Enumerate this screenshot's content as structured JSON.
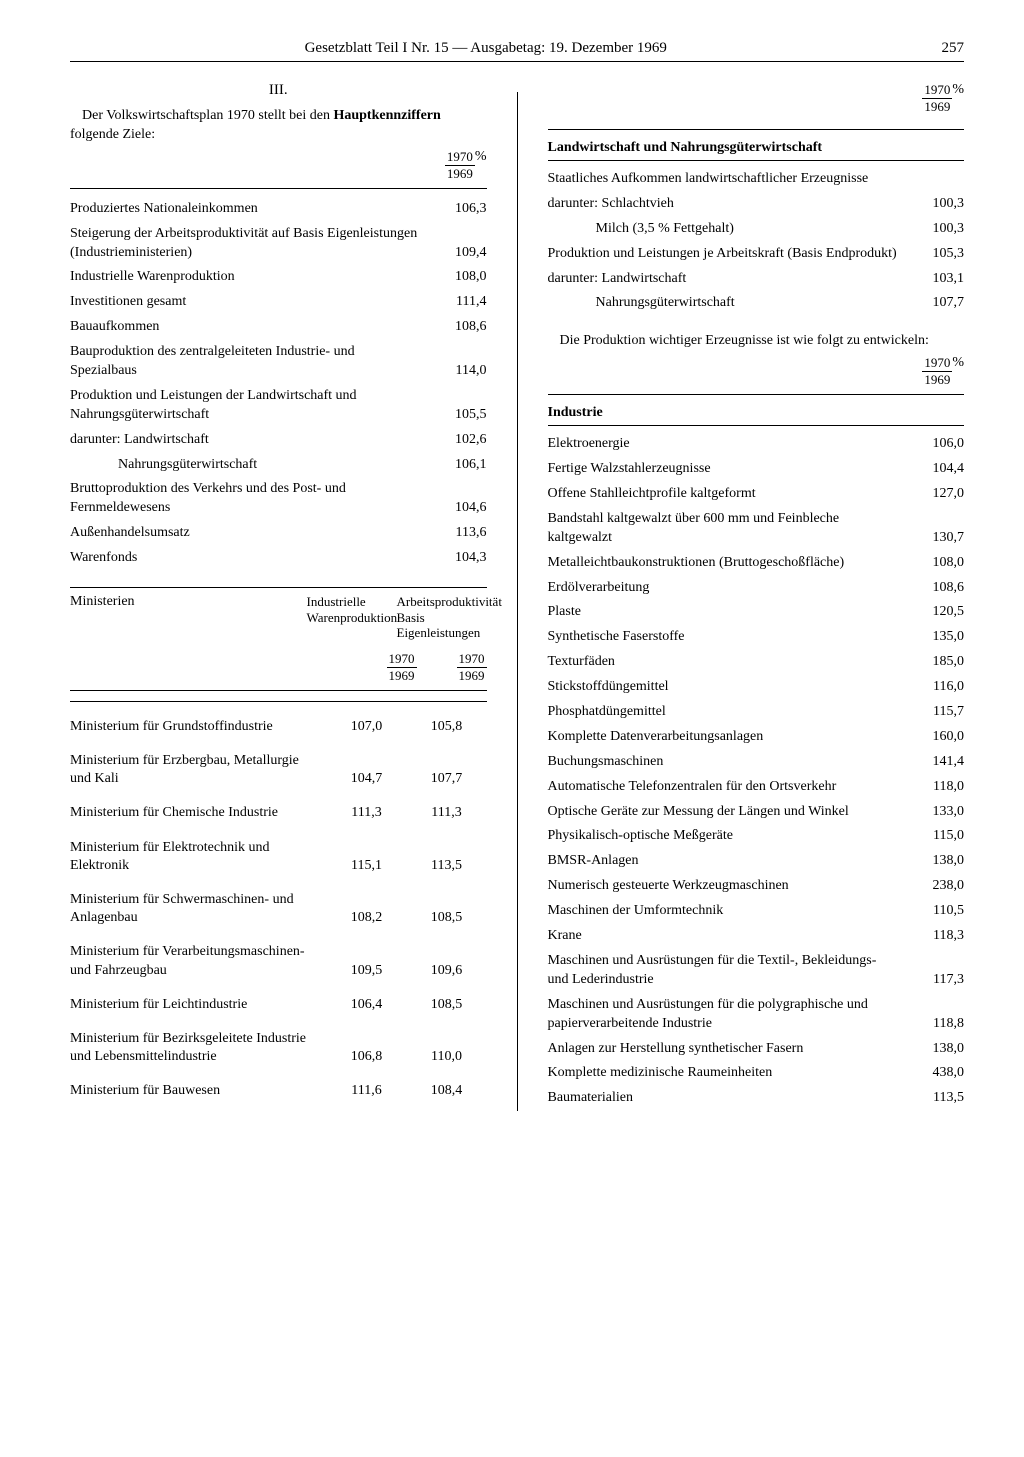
{
  "header": {
    "title": "Gesetzblatt Teil I Nr. 15 — Ausgabetag: 19. Dezember 1969",
    "page": "257"
  },
  "left": {
    "section_num": "III.",
    "intro_pre": "Der Volkswirtschaftsplan 1970 stellt bei den ",
    "intro_bold": "Hauptkennziffern",
    "intro_post": " folgende Ziele:",
    "ratio_top": "1970",
    "ratio_bot": "1969",
    "ratio_pct": "%",
    "rows1": [
      {
        "label": "Produziertes Nationaleinkommen",
        "val": "106,3"
      },
      {
        "label": "Steigerung der Arbeitsproduktivität auf Basis Eigenleistungen (Industrieministerien)",
        "val": "109,4"
      },
      {
        "label": "Industrielle Warenproduktion",
        "val": "108,0"
      },
      {
        "label": "Investitionen gesamt",
        "val": "111,4"
      },
      {
        "label": "Bauaufkommen",
        "val": "108,6"
      },
      {
        "label": "Bauproduktion des zentralgeleiteten Industrie- und Spezialbaus",
        "val": "114,0"
      },
      {
        "label": "Produktion und Leistungen der Landwirtschaft und Nahrungsgüterwirtschaft",
        "val": "105,5"
      },
      {
        "label": "darunter: Landwirtschaft",
        "val": "102,6"
      },
      {
        "label": "Nahrungsgüterwirtschaft",
        "val": "106,1",
        "indent": true
      },
      {
        "label": "Bruttoproduktion des Verkehrs und des Post- und Fernmeldewesens",
        "val": "104,6"
      },
      {
        "label": "Außenhandelsumsatz",
        "val": "113,6"
      },
      {
        "label": "Warenfonds",
        "val": "104,3"
      }
    ],
    "ministries_header": {
      "col0": "Ministerien",
      "col1": "Industrielle Warenproduktion",
      "col2": "Arbeitsproduktivität Basis Eigenleistungen"
    },
    "ministries": [
      {
        "label": "Ministerium für Grundstoffindustrie",
        "v1": "107,0",
        "v2": "105,8"
      },
      {
        "label": "Ministerium für Erzbergbau, Metallurgie und Kali",
        "v1": "104,7",
        "v2": "107,7"
      },
      {
        "label": "Ministerium für Chemische Industrie",
        "v1": "111,3",
        "v2": "111,3"
      },
      {
        "label": "Ministerium für Elektrotechnik und Elektronik",
        "v1": "115,1",
        "v2": "113,5"
      },
      {
        "label": "Ministerium für Schwermaschinen- und Anlagenbau",
        "v1": "108,2",
        "v2": "108,5"
      },
      {
        "label": "Ministerium für Verarbeitungsmaschinen- und Fahrzeugbau",
        "v1": "109,5",
        "v2": "109,6"
      },
      {
        "label": "Ministerium für Leichtindustrie",
        "v1": "106,4",
        "v2": "108,5"
      },
      {
        "label": "Ministerium für Bezirksgeleitete Industrie und Lebensmittelindustrie",
        "v1": "106,8",
        "v2": "110,0"
      },
      {
        "label": "Ministerium für Bauwesen",
        "v1": "111,6",
        "v2": "108,4"
      }
    ]
  },
  "right": {
    "ratio_top": "1970",
    "ratio_bot": "1969",
    "ratio_pct": "%",
    "section1_title": "Landwirtschaft und Nahrungsgüterwirtschaft",
    "ag_rows": [
      {
        "label": "Staatliches Aufkommen landwirtschaftlicher Erzeugnisse",
        "val": ""
      },
      {
        "label": "darunter: Schlachtvieh",
        "val": "100,3"
      },
      {
        "label": "Milch (3,5 % Fettgehalt)",
        "val": "100,3",
        "indent": true
      },
      {
        "label": "Produktion und Leistungen je Arbeitskraft (Basis Endprodukt)",
        "val": "105,3"
      },
      {
        "label": "darunter: Landwirtschaft",
        "val": "103,1"
      },
      {
        "label": "Nahrungsgüterwirtschaft",
        "val": "107,7",
        "indent": true
      }
    ],
    "prod_text": "Die Produktion wichtiger Erzeugnisse ist wie folgt zu entwickeln:",
    "section2_title": "Industrie",
    "ind_rows": [
      {
        "label": "Elektroenergie",
        "val": "106,0"
      },
      {
        "label": "Fertige Walzstahlerzeugnisse",
        "val": "104,4"
      },
      {
        "label": "Offene Stahlleichtprofile kaltgeformt",
        "val": "127,0"
      },
      {
        "label": "Bandstahl kaltgewalzt über 600 mm und Feinbleche kaltgewalzt",
        "val": "130,7"
      },
      {
        "label": "Metalleichtbaukonstruktionen (Bruttogeschoßfläche)",
        "val": "108,0"
      },
      {
        "label": "Erdölverarbeitung",
        "val": "108,6"
      },
      {
        "label": "Plaste",
        "val": "120,5"
      },
      {
        "label": "Synthetische Faserstoffe",
        "val": "135,0"
      },
      {
        "label": "Texturfäden",
        "val": "185,0"
      },
      {
        "label": "Stickstoffdüngemittel",
        "val": "116,0"
      },
      {
        "label": "Phosphatdüngemittel",
        "val": "115,7"
      },
      {
        "label": "Komplette Datenverarbeitungsanlagen",
        "val": "160,0"
      },
      {
        "label": "Buchungsmaschinen",
        "val": "141,4"
      },
      {
        "label": "Automatische Telefonzentralen für den Ortsverkehr",
        "val": "118,0"
      },
      {
        "label": "Optische Geräte zur Messung der Längen und Winkel",
        "val": "133,0"
      },
      {
        "label": "Physikalisch-optische Meßgeräte",
        "val": "115,0"
      },
      {
        "label": "BMSR-Anlagen",
        "val": "138,0"
      },
      {
        "label": "Numerisch gesteuerte Werkzeugmaschinen",
        "val": "238,0"
      },
      {
        "label": "Maschinen der Umformtechnik",
        "val": "110,5"
      },
      {
        "label": "Krane",
        "val": "118,3"
      },
      {
        "label": "Maschinen und Ausrüstungen für die Textil-, Bekleidungs- und Lederindustrie",
        "val": "117,3"
      },
      {
        "label": "Maschinen und Ausrüstungen für die polygraphische und papierverarbeitende Industrie",
        "val": "118,8"
      },
      {
        "label": "Anlagen zur Herstellung synthetischer Fasern",
        "val": "138,0"
      },
      {
        "label": "Komplette medizinische Raumeinheiten",
        "val": "438,0"
      },
      {
        "label": "Baumaterialien",
        "val": "113,5"
      }
    ]
  }
}
